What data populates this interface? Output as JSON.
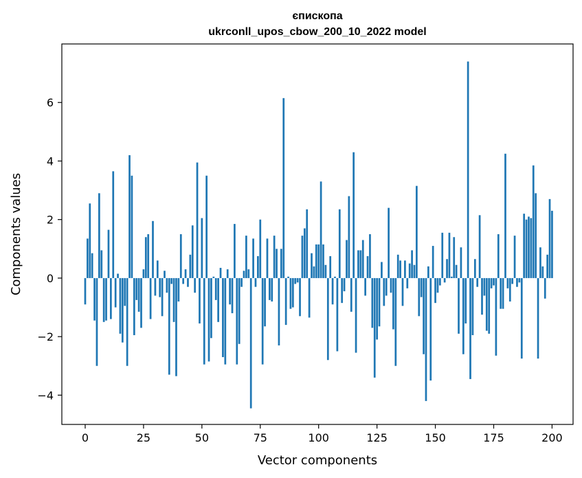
{
  "chart_data": {
    "type": "bar",
    "title_line1": "єпископа",
    "title_line2": "ukrconll_upos_cbow_200_10_2022 model",
    "xlabel": "Vector components",
    "ylabel": "Components values",
    "xlim": [
      -10,
      209
    ],
    "ylim": [
      -5,
      8
    ],
    "xticks": [
      0,
      25,
      50,
      75,
      100,
      125,
      150,
      175,
      200
    ],
    "xtick_labels": [
      "0",
      "25",
      "50",
      "75",
      "100",
      "125",
      "150",
      "175",
      "200"
    ],
    "yticks": [
      -4,
      -2,
      0,
      2,
      4,
      6
    ],
    "ytick_labels": [
      "−4",
      "−2",
      "0",
      "2",
      "4",
      "6"
    ],
    "bar_color": "#1f77b4",
    "values": [
      -0.9,
      1.35,
      2.55,
      0.85,
      -1.45,
      -3.0,
      2.9,
      0.95,
      -1.5,
      -1.45,
      1.65,
      -1.4,
      3.65,
      -1.0,
      0.15,
      -1.9,
      -2.2,
      -0.95,
      -3.0,
      4.2,
      3.5,
      -1.95,
      -0.75,
      -1.15,
      -1.7,
      0.3,
      1.4,
      1.5,
      -1.4,
      1.95,
      -0.6,
      0.6,
      -0.65,
      -1.3,
      0.25,
      -0.5,
      -3.3,
      -0.2,
      -1.5,
      -3.35,
      -0.8,
      1.5,
      -0.2,
      0.3,
      -0.3,
      0.8,
      1.8,
      -0.5,
      3.95,
      -1.55,
      2.05,
      -2.95,
      3.5,
      -2.85,
      -2.05,
      0.05,
      -0.75,
      -1.5,
      0.35,
      -2.7,
      -2.95,
      0.3,
      -0.9,
      -1.2,
      1.85,
      -2.95,
      -2.25,
      -0.3,
      0.25,
      1.45,
      0.3,
      -4.45,
      1.35,
      -0.3,
      0.75,
      2.0,
      -2.95,
      -1.65,
      1.35,
      -0.75,
      -0.8,
      1.45,
      1.0,
      -2.3,
      1.0,
      6.15,
      -1.6,
      0.05,
      -1.05,
      -1.0,
      -0.2,
      -0.15,
      -1.3,
      1.45,
      1.7,
      2.35,
      -1.35,
      0.85,
      0.4,
      1.15,
      1.15,
      3.3,
      1.15,
      0.45,
      -2.8,
      0.75,
      -0.9,
      0.05,
      -2.5,
      2.35,
      -0.85,
      -0.45,
      1.3,
      2.8,
      -1.15,
      4.3,
      -2.55,
      0.95,
      0.95,
      1.3,
      -0.6,
      0.75,
      1.5,
      -1.7,
      -3.4,
      -2.1,
      -1.65,
      0.55,
      -0.95,
      -0.6,
      2.4,
      -0.5,
      -1.75,
      -3.0,
      0.8,
      0.6,
      -0.95,
      0.6,
      -0.35,
      0.5,
      0.95,
      0.45,
      3.15,
      -1.3,
      -0.65,
      -2.6,
      -4.2,
      0.4,
      -3.5,
      1.1,
      -0.85,
      -0.5,
      -0.25,
      1.55,
      -0.15,
      0.65,
      1.55,
      0.05,
      1.4,
      0.45,
      -1.9,
      1.05,
      -2.6,
      -1.55,
      7.4,
      -3.45,
      -1.95,
      0.65,
      -0.3,
      2.15,
      -1.25,
      -0.6,
      -1.8,
      -1.9,
      -0.35,
      -0.25,
      -2.65,
      1.5,
      -1.05,
      -1.05,
      4.25,
      -0.35,
      -0.8,
      -0.2,
      1.45,
      -0.3,
      -0.15,
      -2.75,
      2.2,
      2.0,
      2.1,
      2.05,
      3.85,
      2.9,
      -2.75,
      1.05,
      0.4,
      -0.7,
      0.8,
      2.7,
      2.3
    ]
  }
}
